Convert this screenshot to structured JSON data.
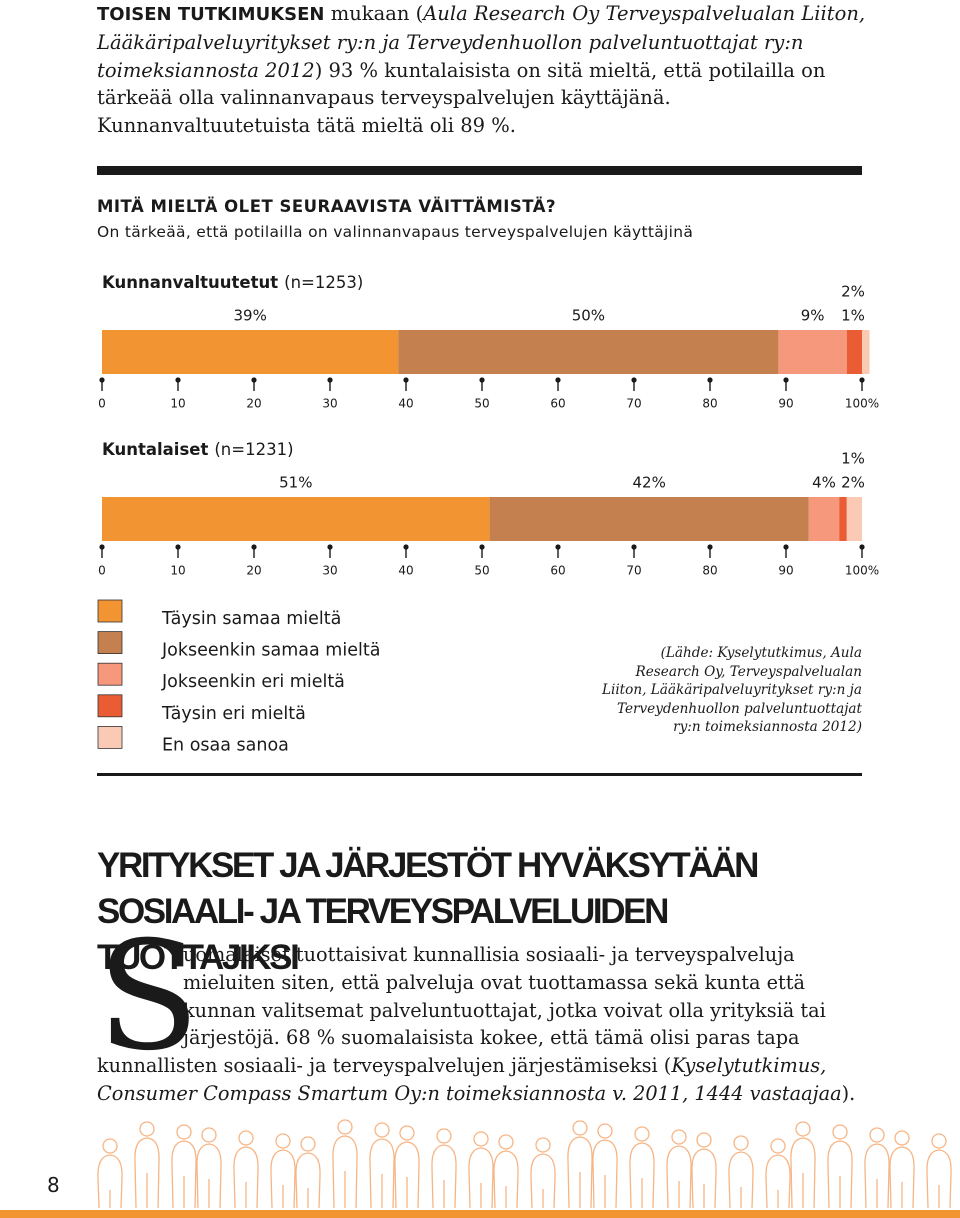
{
  "intro": {
    "lead": "TOISEN TUTKIMUKSEN",
    "text_1": " mukaan (",
    "italic": "Aula Research Oy Terveyspalvelualan Liiton, Lääkäripalveluyritykset ry:n ja Terveydenhuollon palveluntuottajat ry:n toimeksiannosta 2012",
    "text_2": ") 93 % kuntalaisista on sitä mieltä, että potilailla on tärkeää olla valinnanvapaus terveyspalvelujen käyttäjänä. Kunnanvaltuutetuista tätä mieltä oli 89 %."
  },
  "survey_title": "MITÄ MIELTÄ OLET SEURAAVISTA VÄITTÄMISTÄ?",
  "survey_question": "On tärkeää, että potilailla on valinnanvapaus terveyspalvelujen käyttäjinä",
  "chart_data": [
    {
      "type": "bar",
      "orientation": "horizontal",
      "stacked": true,
      "title": "Kunnanvaltuutetut",
      "subtitle": "(n=1253)",
      "series": [
        {
          "name": "Täysin samaa mieltä",
          "color": "#f39433",
          "values": [
            39
          ],
          "value_labels": [
            "39%"
          ]
        },
        {
          "name": "Jokseenkin samaa mieltä",
          "color": "#c4814f",
          "values": [
            50
          ],
          "value_labels": [
            "50%"
          ]
        },
        {
          "name": "Jokseenkin eri mieltä",
          "color": "#f5987b",
          "values": [
            9
          ],
          "value_labels": [
            "9%"
          ]
        },
        {
          "name": "Täysin eri mieltä",
          "color": "#ea5d34",
          "values": [
            2
          ],
          "value_labels": [
            "2%"
          ]
        },
        {
          "name": "En osaa sanoa",
          "color": "#fbcab4",
          "values": [
            1
          ],
          "value_labels": [
            "1%"
          ]
        }
      ],
      "xlim": [
        0,
        100
      ],
      "xticks": [
        0,
        10,
        20,
        30,
        40,
        50,
        60,
        70,
        80,
        90,
        {
          "value": 100,
          "label": "100%"
        }
      ]
    },
    {
      "type": "bar",
      "orientation": "horizontal",
      "stacked": true,
      "title": "Kuntalaiset",
      "subtitle": "(n=1231)",
      "series": [
        {
          "name": "Täysin samaa mieltä",
          "color": "#f39433",
          "values": [
            51
          ],
          "value_labels": [
            "51%"
          ]
        },
        {
          "name": "Jokseenkin samaa mieltä",
          "color": "#c4814f",
          "values": [
            42
          ],
          "value_labels": [
            "42%"
          ]
        },
        {
          "name": "Jokseenkin eri mieltä",
          "color": "#f5987b",
          "values": [
            4
          ],
          "value_labels": [
            "4%"
          ]
        },
        {
          "name": "Täysin eri mieltä",
          "color": "#ea5d34",
          "values": [
            1
          ],
          "value_labels": [
            "1%"
          ]
        },
        {
          "name": "En osaa sanoa",
          "color": "#fbcab4",
          "values": [
            2
          ],
          "value_labels": [
            "2%"
          ]
        }
      ],
      "xlim": [
        0,
        100
      ],
      "xticks": [
        0,
        10,
        20,
        30,
        40,
        50,
        60,
        70,
        80,
        90,
        {
          "value": 100,
          "label": "100%"
        }
      ]
    }
  ],
  "source": "(Lähde: Kyselytutkimus, Aula Research Oy, Terveyspalvelualan Liiton, Lääkäripalveluyritykset ry:n ja Terveydenhuollon palveluntuottajat ry:n toimeksiannosta 2012)",
  "article": {
    "title": "YRITYKSET JA JÄRJESTÖT HYVÄKSYTÄÄN SOSIAALI- JA TERVEYSPALVELUIDEN TUOTTAJIKSI",
    "drop_cap": "S",
    "text_1": "uomalaiset tuottaisivat kunnallisia sosiaali- ja terveyspalveluja mieluiten siten, että palveluja ovat tuottamassa sekä kunta että kunnan valitsemat palveluntuottajat, jotka voivat olla yrityksiä tai järjestöjä. 68 % suomalaisista kokee, että tämä olisi paras tapa kunnallisten sosiaali- ja terveyspalvelujen järjestämiseksi (",
    "italic": "Kyselytutkimus, Consumer Compass Smartum Oy:n toimeksiannosta v. 2011, 1444 vastaajaa",
    "text_2": ")."
  },
  "page_number": "8"
}
